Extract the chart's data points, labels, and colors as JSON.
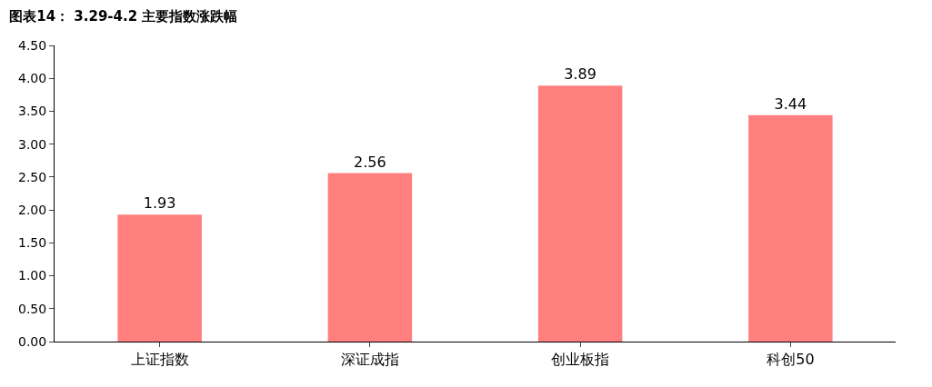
{
  "chart_data": {
    "type": "bar",
    "title": "图表14： 3.29-4.2 主要指数涨跌幅",
    "categories": [
      "上证指数",
      "深证成指",
      "创业板指",
      "科创50"
    ],
    "values": [
      1.93,
      2.56,
      3.89,
      3.44
    ],
    "color": "#ff7f7f",
    "ylim": [
      0,
      4.5
    ],
    "yticks": [
      {
        "value": 0,
        "label": "0.00"
      },
      {
        "value": 0.5,
        "label": "0.50"
      },
      {
        "value": 1,
        "label": "1.00"
      },
      {
        "value": 1.5,
        "label": "1.50"
      },
      {
        "value": 2,
        "label": "2.00"
      },
      {
        "value": 2.5,
        "label": "2.50"
      },
      {
        "value": 3,
        "label": "3.00"
      },
      {
        "value": 3.5,
        "label": "3.50"
      },
      {
        "value": 4,
        "label": "4.00"
      },
      {
        "value": 4.5,
        "label": "4.50"
      }
    ],
    "data_labels": true
  }
}
